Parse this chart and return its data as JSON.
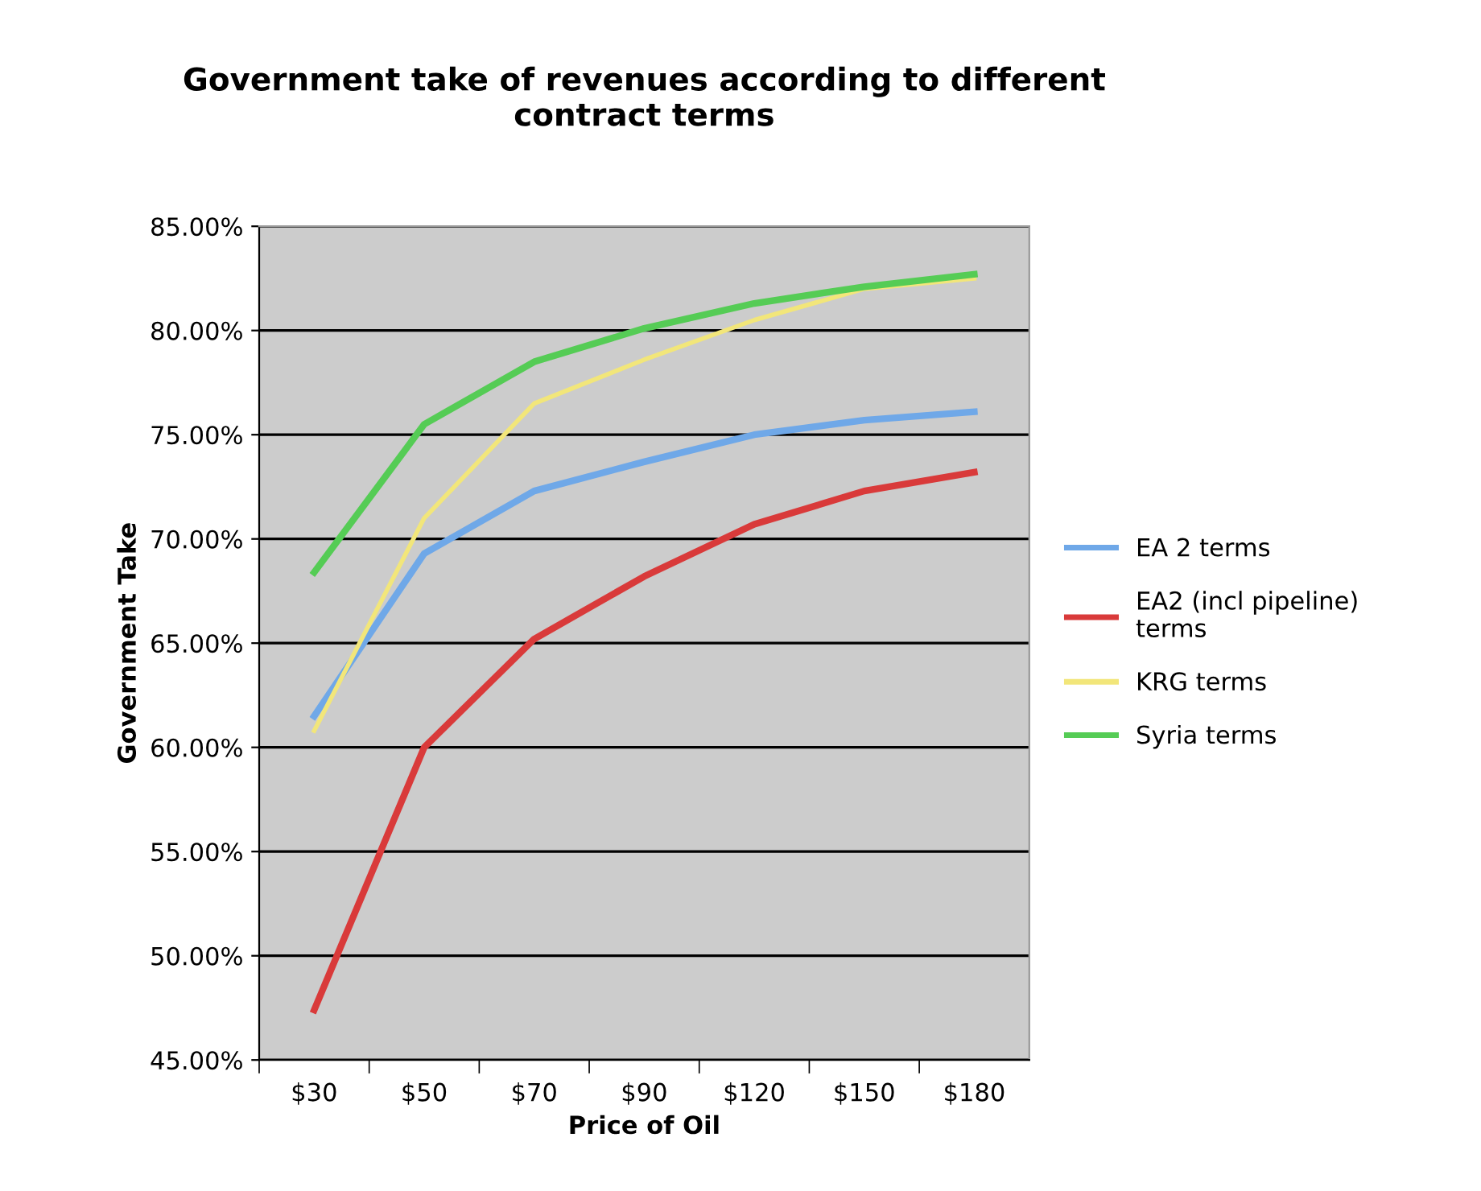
{
  "chart_data": {
    "type": "line",
    "title": "Government take of revenues according to different\ncontract terms",
    "xlabel": "Price of Oil",
    "ylabel": "Government Take",
    "categories": [
      "$30",
      "$50",
      "$70",
      "$90",
      "$120",
      "$150",
      "$180"
    ],
    "series": [
      {
        "name": "EA 2 terms",
        "color": "#6fa8e8",
        "values": [
          0.615,
          0.693,
          0.723,
          0.737,
          0.75,
          0.757,
          0.761
        ]
      },
      {
        "name": "EA2 (incl pipeline)\nterms",
        "color": "#d93a3a",
        "values": [
          0.474,
          0.6,
          0.652,
          0.682,
          0.707,
          0.723,
          0.732
        ]
      },
      {
        "name": "KRG terms",
        "color": "#f2e67a",
        "values": [
          0.608,
          0.71,
          0.765,
          0.786,
          0.805,
          0.82,
          0.825
        ]
      },
      {
        "name": "Syria terms",
        "color": "#55cc55",
        "values": [
          0.684,
          0.755,
          0.785,
          0.801,
          0.813,
          0.821,
          0.827
        ]
      }
    ],
    "ylim": [
      0.45,
      0.85
    ],
    "yticks": [
      {
        "value": 0.45,
        "label": "45.00%"
      },
      {
        "value": 0.5,
        "label": "50.00%"
      },
      {
        "value": 0.55,
        "label": "55.00%"
      },
      {
        "value": 0.6,
        "label": "60.00%"
      },
      {
        "value": 0.65,
        "label": "65.00%"
      },
      {
        "value": 0.7,
        "label": "70.00%"
      },
      {
        "value": 0.75,
        "label": "75.00%"
      },
      {
        "value": 0.8,
        "label": "80.00%"
      },
      {
        "value": 0.85,
        "label": "85.00%"
      }
    ],
    "grid": "y",
    "legend": "right",
    "marker": "none",
    "line_style": "solid"
  }
}
